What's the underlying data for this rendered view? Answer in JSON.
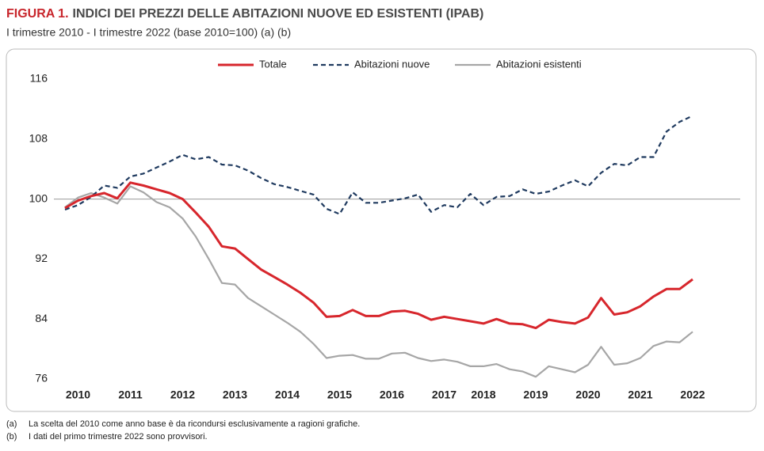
{
  "chart_data": {
    "type": "line",
    "figure_label": "FIGURA 1.",
    "title": "INDICI DEI PREZZI DELLE ABITAZIONI NUOVE ED ESISTENTI (IPAB)",
    "subtitle": "I trimestre 2010 - I trimestre 2022 (base 2010=100) (a) (b)",
    "footnotes": [
      {
        "marker": "(a)",
        "text": "La scelta del 2010 come anno base è da ricondursi esclusivamente a ragioni grafiche."
      },
      {
        "marker": "(b)",
        "text": "I dati del primo trimestre 2022 sono provvisori."
      }
    ],
    "categories": [
      null,
      "2010",
      null,
      null,
      null,
      "2011",
      null,
      null,
      null,
      "2012",
      null,
      null,
      null,
      "2013",
      null,
      null,
      null,
      "2014",
      null,
      null,
      null,
      "2015",
      null,
      null,
      null,
      "2016",
      null,
      null,
      null,
      "2017",
      null,
      null,
      "2018",
      null,
      null,
      null,
      "2019",
      null,
      null,
      null,
      "2020",
      null,
      null,
      null,
      "2021",
      null,
      null,
      null,
      "2022"
    ],
    "ylim": [
      76,
      116
    ],
    "yticks": [
      76,
      84,
      92,
      100,
      108,
      116
    ],
    "reference_line": 100,
    "legend": "top",
    "series": [
      {
        "name": "Totale",
        "color": "#d7262c",
        "dashed": false,
        "values": [
          98.8,
          99.8,
          100.4,
          100.8,
          100.1,
          102.2,
          101.8,
          101.3,
          100.8,
          100.0,
          98.2,
          96.3,
          93.7,
          93.4,
          92.0,
          90.6,
          89.6,
          88.6,
          87.5,
          86.2,
          84.3,
          84.4,
          85.2,
          84.4,
          84.4,
          85.0,
          85.1,
          84.7,
          83.9,
          84.3,
          84.0,
          83.7,
          83.4,
          84.0,
          83.4,
          83.3,
          82.8,
          83.9,
          83.6,
          83.4,
          84.2,
          86.8,
          84.6,
          84.9,
          85.7,
          87.0,
          88.0,
          88.0,
          89.3
        ]
      },
      {
        "name": "Abitazioni nuove",
        "color": "#1f3a5f",
        "dashed": true,
        "values": [
          98.6,
          99.2,
          100.3,
          101.8,
          101.5,
          103.0,
          103.4,
          104.2,
          105.0,
          105.9,
          105.3,
          105.6,
          104.6,
          104.5,
          103.8,
          102.8,
          102.0,
          101.6,
          101.1,
          100.6,
          98.7,
          98.0,
          100.9,
          99.5,
          99.5,
          99.8,
          100.1,
          100.6,
          98.3,
          99.2,
          98.9,
          100.7,
          99.2,
          100.3,
          100.4,
          101.3,
          100.7,
          101.0,
          101.8,
          102.5,
          101.7,
          103.5,
          104.7,
          104.5,
          105.6,
          105.6,
          109.0,
          110.3,
          111.1
        ]
      },
      {
        "name": "Abitazioni esistenti",
        "color": "#a6a6a6",
        "dashed": false,
        "values": [
          98.9,
          100.2,
          100.8,
          100.2,
          99.4,
          101.7,
          100.9,
          99.6,
          98.9,
          97.4,
          95.0,
          92.0,
          88.8,
          88.6,
          86.8,
          85.7,
          84.6,
          83.5,
          82.3,
          80.7,
          78.8,
          79.1,
          79.2,
          78.7,
          78.7,
          79.4,
          79.5,
          78.8,
          78.4,
          78.6,
          78.3,
          77.7,
          77.7,
          78.0,
          77.3,
          77.0,
          76.3,
          77.7,
          77.3,
          76.9,
          77.9,
          80.3,
          77.9,
          78.1,
          78.8,
          80.4,
          81.0,
          80.9,
          82.3
        ]
      }
    ]
  }
}
